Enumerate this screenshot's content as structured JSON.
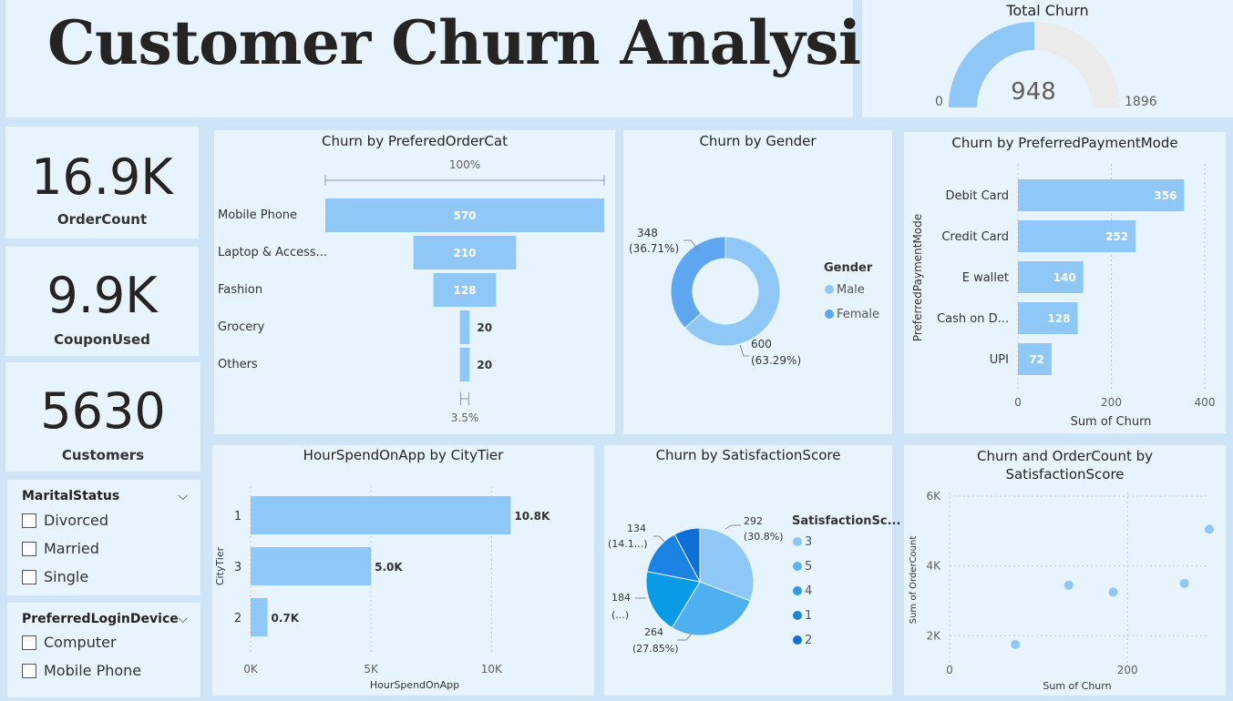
{
  "page": {
    "title": "Customer Churn Analysis"
  },
  "colors": {
    "bar": "#8fc8f6",
    "light": "#8fc8f6",
    "dark": "#5ea6ef",
    "gaugeBg": "#ebebeb",
    "tile": "#e8f4fd"
  },
  "gauge": {
    "title": "Total Churn",
    "value": 948,
    "value_label": "948",
    "min_label": "0",
    "max_label": "1896",
    "max": 1896
  },
  "kpis": [
    {
      "value": "16.9K",
      "label": "OrderCount"
    },
    {
      "value": "9.9K",
      "label": "CouponUsed"
    },
    {
      "value": "5630",
      "label": "Customers"
    }
  ],
  "slicers": {
    "marital": {
      "title": "MaritalStatus",
      "options": [
        "Divorced",
        "Married",
        "Single"
      ]
    },
    "login": {
      "title": "PreferredLoginDevice",
      "options": [
        "Computer",
        "Mobile Phone"
      ]
    }
  },
  "chart_data": [
    {
      "type": "bar",
      "subtype": "funnel",
      "title": "Churn by PreferedOrderCat",
      "categories": [
        "Mobile Phone",
        "Laptop & Access...",
        "Fashion",
        "Grocery",
        "Others"
      ],
      "values": [
        570,
        210,
        128,
        20,
        20
      ],
      "value_labels": [
        "570",
        "210",
        "128",
        "20",
        "20"
      ],
      "top_label": "100%",
      "bottom_label": "3.5%"
    },
    {
      "type": "pie",
      "subtype": "donut",
      "title": "Churn by Gender",
      "legend_title": "Gender",
      "legend_position": "right",
      "categories": [
        "Male",
        "Female"
      ],
      "values": [
        600,
        348
      ],
      "value_labels": [
        "600",
        "348"
      ],
      "percent_labels": [
        "(63.29%)",
        "(36.71%)"
      ]
    },
    {
      "type": "bar",
      "orientation": "horizontal",
      "title": "Churn by PreferredPaymentMode",
      "categories": [
        "Debit Card",
        "Credit Card",
        "E wallet",
        "Cash on D...",
        "UPI"
      ],
      "values": [
        356,
        252,
        140,
        128,
        72
      ],
      "xlabel": "Sum of Churn",
      "ylabel": "PreferredPaymentMode",
      "xlim": [
        0,
        400
      ],
      "xticks": [
        "0",
        "200",
        "400"
      ],
      "grid": true
    },
    {
      "type": "bar",
      "orientation": "horizontal",
      "title": "HourSpendOnApp by CityTier",
      "categories": [
        "1",
        "3",
        "2"
      ],
      "values": [
        10800,
        5000,
        700
      ],
      "value_labels": [
        "10.8K",
        "5.0K",
        "0.7K"
      ],
      "xlabel": "HourSpendOnApp",
      "ylabel": "CityTier",
      "xlim": [
        0,
        14000
      ],
      "xticks": [
        "0K",
        "5K",
        "10K"
      ],
      "grid": true
    },
    {
      "type": "pie",
      "title": "Churn by SatisfactionScore",
      "legend_title": "SatisfactionSc...",
      "legend_position": "right",
      "legend": [
        "3",
        "5",
        "4",
        "1",
        "2"
      ],
      "legend_colors": [
        "#8fc8f6",
        "#5cb3f2",
        "#2c9ae8",
        "#1a84e0",
        "#0f6fd6"
      ],
      "categories": [
        "3",
        "5",
        "4",
        "1",
        "2"
      ],
      "values": [
        292,
        264,
        184,
        134,
        74
      ],
      "slice_colors": [
        "#8fc8f6",
        "#4fb0f0",
        "#0a9ae6",
        "#1b83e3",
        "#0f6fd6"
      ],
      "label_values": [
        "292",
        "264",
        "184",
        "134"
      ],
      "label_percents": [
        "(30.8%)",
        "(27.85%)",
        "(...)",
        "(14.1...)"
      ]
    },
    {
      "type": "scatter",
      "title": "Churn and OrderCount by SatisfactionScore",
      "title_lines": [
        "Churn and OrderCount by",
        "SatisfactionScore"
      ],
      "xlabel": "Sum of Churn",
      "ylabel": "Sum of OrderCount",
      "xlim": [
        0,
        290
      ],
      "ylim": [
        1200,
        6000
      ],
      "xticks": [
        {
          "v": 0,
          "label": "0"
        },
        {
          "v": 200,
          "label": "200"
        }
      ],
      "yticks": [
        {
          "v": 2000,
          "label": "2K"
        },
        {
          "v": 4000,
          "label": "4K"
        },
        {
          "v": 6000,
          "label": "6K"
        }
      ],
      "points": [
        {
          "x": 74,
          "y": 1750
        },
        {
          "x": 134,
          "y": 3450
        },
        {
          "x": 184,
          "y": 3250
        },
        {
          "x": 264,
          "y": 3500
        },
        {
          "x": 292,
          "y": 5050
        }
      ],
      "grid": true
    }
  ]
}
